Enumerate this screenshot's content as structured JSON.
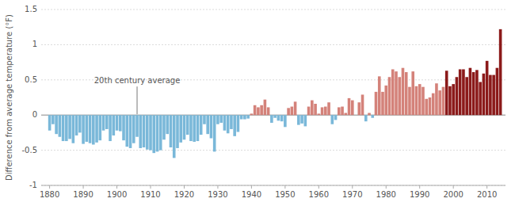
{
  "chart_data": {
    "type": "bar",
    "ylabel": "Difference from average temperature (°F)",
    "x": [
      1880,
      1881,
      1882,
      1883,
      1884,
      1885,
      1886,
      1887,
      1888,
      1889,
      1890,
      1891,
      1892,
      1893,
      1894,
      1895,
      1896,
      1897,
      1898,
      1899,
      1900,
      1901,
      1902,
      1903,
      1904,
      1905,
      1906,
      1907,
      1908,
      1909,
      1910,
      1911,
      1912,
      1913,
      1914,
      1915,
      1916,
      1917,
      1918,
      1919,
      1920,
      1921,
      1922,
      1923,
      1924,
      1925,
      1926,
      1927,
      1928,
      1929,
      1930,
      1931,
      1932,
      1933,
      1934,
      1935,
      1936,
      1937,
      1938,
      1939,
      1940,
      1941,
      1942,
      1943,
      1944,
      1945,
      1946,
      1947,
      1948,
      1949,
      1950,
      1951,
      1952,
      1953,
      1954,
      1955,
      1956,
      1957,
      1958,
      1959,
      1960,
      1961,
      1962,
      1963,
      1964,
      1965,
      1966,
      1967,
      1968,
      1969,
      1970,
      1971,
      1972,
      1973,
      1974,
      1975,
      1976,
      1977,
      1978,
      1979,
      1980,
      1981,
      1982,
      1983,
      1984,
      1985,
      1986,
      1987,
      1988,
      1989,
      1990,
      1991,
      1992,
      1993,
      1994,
      1995,
      1996,
      1997,
      1998,
      1999,
      2000,
      2001,
      2002,
      2003,
      2004,
      2005,
      2006,
      2007,
      2008,
      2009,
      2010,
      2011,
      2012,
      2013,
      2014
    ],
    "values": [
      -0.22,
      -0.13,
      -0.27,
      -0.31,
      -0.37,
      -0.37,
      -0.34,
      -0.4,
      -0.29,
      -0.25,
      -0.41,
      -0.38,
      -0.4,
      -0.42,
      -0.39,
      -0.36,
      -0.22,
      -0.2,
      -0.37,
      -0.29,
      -0.22,
      -0.23,
      -0.36,
      -0.45,
      -0.47,
      -0.4,
      -0.31,
      -0.47,
      -0.46,
      -0.49,
      -0.5,
      -0.54,
      -0.52,
      -0.5,
      -0.35,
      -0.27,
      -0.46,
      -0.61,
      -0.47,
      -0.39,
      -0.35,
      -0.28,
      -0.37,
      -0.38,
      -0.37,
      -0.28,
      -0.13,
      -0.27,
      -0.33,
      -0.52,
      -0.13,
      -0.11,
      -0.22,
      -0.26,
      -0.2,
      -0.3,
      -0.24,
      -0.06,
      -0.06,
      -0.05,
      0.02,
      0.14,
      0.11,
      0.14,
      0.22,
      0.11,
      -0.11,
      -0.04,
      -0.08,
      -0.09,
      -0.17,
      0.1,
      0.12,
      0.19,
      -0.14,
      -0.12,
      -0.16,
      0.12,
      0.21,
      0.16,
      0.02,
      0.11,
      0.12,
      0.18,
      -0.13,
      -0.07,
      0.11,
      0.12,
      0.03,
      0.24,
      0.21,
      0.0,
      0.18,
      0.29,
      -0.09,
      0.03,
      -0.04,
      0.33,
      0.55,
      0.33,
      0.42,
      0.54,
      0.65,
      0.62,
      0.54,
      0.67,
      0.61,
      0.4,
      0.62,
      0.41,
      0.44,
      0.4,
      0.23,
      0.25,
      0.31,
      0.45,
      0.35,
      0.4,
      0.63,
      0.41,
      0.44,
      0.54,
      0.65,
      0.65,
      0.54,
      0.67,
      0.61,
      0.64,
      0.47,
      0.59,
      0.77,
      0.57,
      0.57,
      0.67,
      1.22
    ],
    "colors": [
      "#7ab8d9",
      "#7ab8d9",
      "#7ab8d9",
      "#7ab8d9",
      "#7ab8d9",
      "#7ab8d9",
      "#7ab8d9",
      "#7ab8d9",
      "#7ab8d9",
      "#7ab8d9",
      "#7ab8d9",
      "#7ab8d9",
      "#7ab8d9",
      "#7ab8d9",
      "#7ab8d9",
      "#7ab8d9",
      "#7ab8d9",
      "#7ab8d9",
      "#7ab8d9",
      "#7ab8d9",
      "#7ab8d9",
      "#7ab8d9",
      "#7ab8d9",
      "#7ab8d9",
      "#7ab8d9",
      "#7ab8d9",
      "#7ab8d9",
      "#7ab8d9",
      "#7ab8d9",
      "#7ab8d9",
      "#7ab8d9",
      "#7ab8d9",
      "#7ab8d9",
      "#7ab8d9",
      "#7ab8d9",
      "#7ab8d9",
      "#7ab8d9",
      "#7ab8d9",
      "#7ab8d9",
      "#7ab8d9",
      "#7ab8d9",
      "#7ab8d9",
      "#7ab8d9",
      "#7ab8d9",
      "#7ab8d9",
      "#7ab8d9",
      "#7ab8d9",
      "#7ab8d9",
      "#7ab8d9",
      "#7ab8d9",
      "#7ab8d9",
      "#7ab8d9",
      "#7ab8d9",
      "#7ab8d9",
      "#7ab8d9",
      "#7ab8d9",
      "#7ab8d9",
      "#7ab8d9",
      "#7ab8d9",
      "#7ab8d9",
      "#d4827a",
      "#d4827a",
      "#d4827a",
      "#d4827a",
      "#d4827a",
      "#d4827a",
      "#7ab8d9",
      "#7ab8d9",
      "#7ab8d9",
      "#7ab8d9",
      "#7ab8d9",
      "#d4827a",
      "#d4827a",
      "#d4827a",
      "#7ab8d9",
      "#7ab8d9",
      "#7ab8d9",
      "#d4827a",
      "#d4827a",
      "#d4827a",
      "#d4827a",
      "#d4827a",
      "#d4827a",
      "#d4827a",
      "#7ab8d9",
      "#7ab8d9",
      "#d4827a",
      "#d4827a",
      "#d4827a",
      "#d4827a",
      "#d4827a",
      "#d4827a",
      "#d4827a",
      "#d4827a",
      "#7ab8d9",
      "#d4827a",
      "#7ab8d9",
      "#d4827a",
      "#d4827a",
      "#d4827a",
      "#d4827a",
      "#d4827a",
      "#d4827a",
      "#d4827a",
      "#d4827a",
      "#d4827a",
      "#d4827a",
      "#d4827a",
      "#d4827a",
      "#d4827a",
      "#d4827a",
      "#d4827a",
      "#d4827a",
      "#d4827a",
      "#d4827a",
      "#d4827a",
      "#d4827a",
      "#d4827a",
      "#8b1a1a",
      "#8b1a1a",
      "#8b1a1a",
      "#8b1a1a",
      "#8b1a1a",
      "#8b1a1a",
      "#8b1a1a",
      "#8b1a1a",
      "#8b1a1a",
      "#8b1a1a",
      "#8b1a1a",
      "#8b1a1a",
      "#8b1a1a",
      "#8b1a1a",
      "#8b1a1a",
      "#8b1a1a",
      "#8b1a1a"
    ],
    "xlim": [
      1877.5,
      2015.5
    ],
    "xticks": [
      1880,
      1890,
      1900,
      1910,
      1920,
      1930,
      1940,
      1950,
      1960,
      1970,
      1980,
      1990,
      2000,
      2010
    ],
    "ylim": [
      -1.0,
      1.5
    ],
    "yticks": [
      -1,
      -0.5,
      0,
      0.5,
      1,
      1.5
    ],
    "grid": true,
    "annotations": [
      {
        "text": "20th century average",
        "x": 1906,
        "y": 0
      }
    ]
  }
}
